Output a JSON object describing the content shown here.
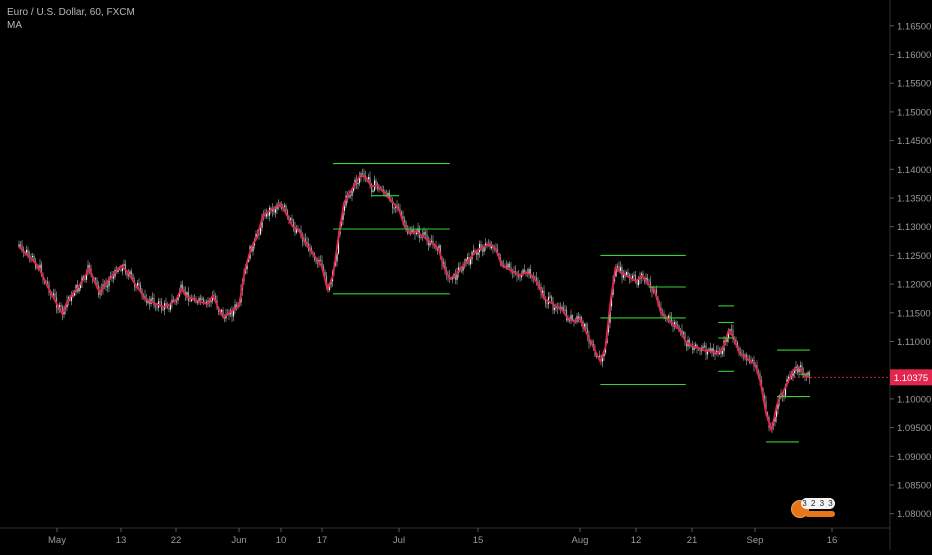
{
  "legend": {
    "title": "Euro / U.S. Dollar, 60, FXCM",
    "indicator": "MA"
  },
  "price_badge": {
    "value": "1.10375",
    "color": "#e2264d"
  },
  "widget": {
    "digits": "3 2 3 3"
  },
  "colors": {
    "background": "#000000",
    "candles": "#d9d9d9",
    "ma_line": "#e2264d",
    "levels": "#31d431",
    "axis_text": "#9a9a9a"
  },
  "chart_data": {
    "type": "line",
    "title": "Euro / U.S. Dollar, 60, FXCM",
    "xlabel": "",
    "ylabel": "",
    "ylim": [
      1.0775,
      1.1695
    ],
    "grid": false,
    "x_ticks": [
      "May",
      "13",
      "22",
      "Jun",
      "10",
      "17",
      "Jul",
      "15",
      "Aug",
      "12",
      "21",
      "Sep",
      "16"
    ],
    "y_ticks": [
      "1.16500",
      "1.16000",
      "1.15500",
      "1.15000",
      "1.14500",
      "1.14000",
      "1.13500",
      "1.13000",
      "1.12500",
      "1.12000",
      "1.11500",
      "1.11000",
      "1.10000",
      "1.09500",
      "1.09000",
      "1.08500",
      "1.08000"
    ],
    "series": [
      {
        "name": "",
        "points": [
          [
            "Apr 27",
            1.1265
          ],
          [
            "Apr 29",
            1.1232
          ],
          [
            "Apr 30",
            1.1196
          ],
          [
            "May 1",
            1.1165
          ],
          [
            "May 2",
            1.1148
          ],
          [
            "May 3",
            1.1171
          ],
          [
            "May 6",
            1.1208
          ],
          [
            "May 7",
            1.1228
          ],
          [
            "May 8",
            1.1205
          ],
          [
            "May 9",
            1.1185
          ],
          [
            "May 10",
            1.12
          ],
          [
            "May 13",
            1.1232
          ],
          [
            "May 14",
            1.1222
          ],
          [
            "May 15",
            1.1205
          ],
          [
            "May 16",
            1.119
          ],
          [
            "May 17",
            1.1173
          ],
          [
            "May 20",
            1.116
          ],
          [
            "May 21",
            1.1165
          ],
          [
            "May 22",
            1.1172
          ],
          [
            "May 23",
            1.1192
          ],
          [
            "May 24",
            1.1178
          ],
          [
            "May 27",
            1.1168
          ],
          [
            "May 28",
            1.1165
          ],
          [
            "May 29",
            1.118
          ],
          [
            "May 30",
            1.116
          ],
          [
            "May 31",
            1.1142
          ],
          [
            "Jun 3",
            1.1162
          ],
          [
            "Jun 4",
            1.1225
          ],
          [
            "Jun 5",
            1.1262
          ],
          [
            "Jun 6",
            1.1282
          ],
          [
            "Jun 7",
            1.132
          ],
          [
            "Jun 10",
            1.134
          ],
          [
            "Jun 11",
            1.132
          ],
          [
            "Jun 12",
            1.13
          ],
          [
            "Jun 13",
            1.1295
          ],
          [
            "Jun 14",
            1.1275
          ],
          [
            "Jun 17",
            1.123
          ],
          [
            "Jun 18",
            1.119
          ],
          [
            "Jun 19",
            1.1215
          ],
          [
            "Jun 20",
            1.1282
          ],
          [
            "Jun 21",
            1.1342
          ],
          [
            "Jun 24",
            1.139
          ],
          [
            "Jun 25",
            1.1385
          ],
          [
            "Jun 26",
            1.137
          ],
          [
            "Jun 27",
            1.1372
          ],
          [
            "Jun 28",
            1.1362
          ],
          [
            "Jul 1",
            1.133
          ],
          [
            "Jul 2",
            1.13
          ],
          [
            "Jul 3",
            1.1288
          ],
          [
            "Jul 4",
            1.1292
          ],
          [
            "Jul 5",
            1.1285
          ],
          [
            "Jul 8",
            1.1262
          ],
          [
            "Jul 9",
            1.1228
          ],
          [
            "Jul 10",
            1.121
          ],
          [
            "Jul 11",
            1.1215
          ],
          [
            "Jul 12",
            1.1228
          ],
          [
            "Jul 15",
            1.126
          ],
          [
            "Jul 16",
            1.1265
          ],
          [
            "Jul 17",
            1.127
          ],
          [
            "Jul 18",
            1.126
          ],
          [
            "Jul 19",
            1.1232
          ],
          [
            "Jul 22",
            1.1215
          ],
          [
            "Jul 23",
            1.122
          ],
          [
            "Jul 24",
            1.1215
          ],
          [
            "Jul 25",
            1.12
          ],
          [
            "Jul 26",
            1.1175
          ],
          [
            "Jul 29",
            1.1155
          ],
          [
            "Jul 30",
            1.114
          ],
          [
            "Jul 31",
            1.1135
          ],
          [
            "Aug 1",
            1.114
          ],
          [
            "Aug 2",
            1.112
          ],
          [
            "Aug 5",
            1.1065
          ],
          [
            "Aug 6",
            1.109
          ],
          [
            "Aug 7",
            1.117
          ],
          [
            "Aug 8",
            1.123
          ],
          [
            "Aug 9",
            1.122
          ],
          [
            "Aug 12",
            1.1205
          ],
          [
            "Aug 13",
            1.1215
          ],
          [
            "Aug 14",
            1.12
          ],
          [
            "Aug 15",
            1.1188
          ],
          [
            "Aug 16",
            1.115
          ],
          [
            "Aug 19",
            1.112
          ],
          [
            "Aug 20",
            1.11
          ],
          [
            "Aug 21",
            1.1092
          ],
          [
            "Aug 22",
            1.109
          ],
          [
            "Aug 23",
            1.1085
          ],
          [
            "Aug 26",
            1.108
          ],
          [
            "Aug 27",
            1.109
          ],
          [
            "Aug 28",
            1.112
          ],
          [
            "Aug 29",
            1.1105
          ],
          [
            "Aug 30",
            1.108
          ],
          [
            "Sep 2",
            1.106
          ],
          [
            "Sep 3",
            1.103
          ],
          [
            "Sep 4",
            1.0975
          ],
          [
            "Sep 5",
            1.0945
          ],
          [
            "Sep 6",
            1.099
          ],
          [
            "Sep 9",
            1.105
          ],
          [
            "Sep 10",
            1.1055
          ],
          [
            "Sep 11",
            1.104
          ],
          [
            "Sep 12",
            1.1037
          ]
        ]
      }
    ],
    "current_price": 1.10375,
    "levels": [
      {
        "from": "Jun 19",
        "to": "Jul 10",
        "y": 1.141
      },
      {
        "from": "Jun 26",
        "to": "Jul 1",
        "y": 1.1354
      },
      {
        "from": "Jun 19",
        "to": "Jul 10",
        "y": 1.1296
      },
      {
        "from": "Jun 19",
        "to": "Jul 10",
        "y": 1.1183
      },
      {
        "from": "Aug 5",
        "to": "Aug 20",
        "y": 1.125
      },
      {
        "from": "Aug 14",
        "to": "Aug 20",
        "y": 1.1195
      },
      {
        "from": "Aug 5",
        "to": "Aug 20",
        "y": 1.1141
      },
      {
        "from": "Aug 5",
        "to": "Aug 20",
        "y": 1.1025
      },
      {
        "from": "Aug 26",
        "to": "Aug 29",
        "y": 1.1162
      },
      {
        "from": "Aug 26",
        "to": "Aug 29",
        "y": 1.1133
      },
      {
        "from": "Aug 26",
        "to": "Aug 29",
        "y": 1.1106
      },
      {
        "from": "Aug 26",
        "to": "Aug 29",
        "y": 1.1048
      },
      {
        "from": "Sep 6",
        "to": "Sep 12",
        "y": 1.1085
      },
      {
        "from": "Sep 10",
        "to": "Sep 12",
        "y": 1.1043
      },
      {
        "from": "Sep 6",
        "to": "Sep 12",
        "y": 1.1004
      },
      {
        "from": "Sep 4",
        "to": "Sep 10",
        "y": 1.0925
      }
    ]
  }
}
